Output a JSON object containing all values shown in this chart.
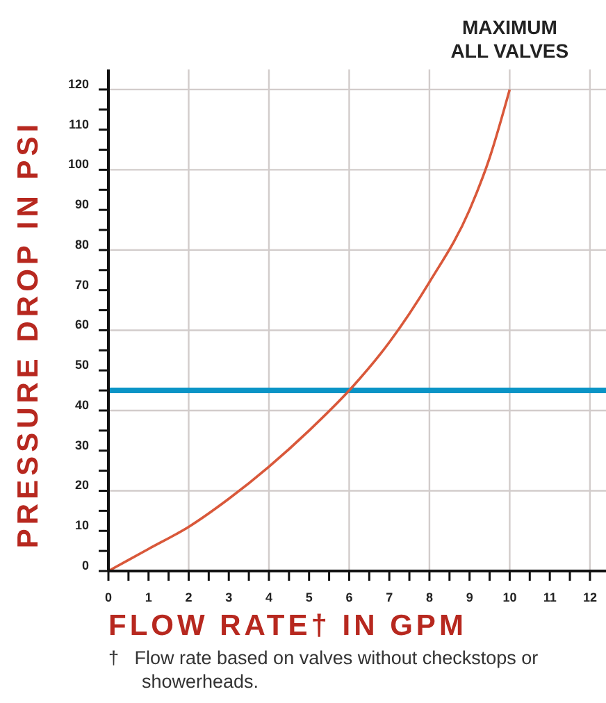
{
  "chart_data": {
    "type": "line",
    "xlabel": "FLOW RATE† IN GPM",
    "ylabel": "PRESSURE DROP IN PSI",
    "x": [
      0,
      1,
      2,
      3,
      4,
      5,
      6,
      7,
      8,
      9,
      9.5,
      10
    ],
    "series": [
      {
        "color": "#d9583a",
        "values": [
          0,
          5.5,
          11,
          18,
          26,
          35,
          45,
          57,
          72,
          90,
          103,
          120
        ]
      }
    ],
    "xlim": [
      0,
      12.4
    ],
    "ylim": [
      0,
      125
    ],
    "xticks": [
      0,
      {
        "value": 0.5,
        "label": null
      },
      1,
      {
        "value": 1.5,
        "label": null
      },
      2,
      {
        "value": 2.5,
        "label": null
      },
      3,
      {
        "value": 3.5,
        "label": null
      },
      4,
      {
        "value": 4.5,
        "label": null
      },
      5,
      {
        "value": 5.5,
        "label": null
      },
      6,
      {
        "value": 6.5,
        "label": null
      },
      7,
      {
        "value": 7.5,
        "label": null
      },
      8,
      {
        "value": 8.5,
        "label": null
      },
      9,
      {
        "value": 9.5,
        "label": null
      },
      10,
      {
        "value": 10.5,
        "label": null
      },
      11,
      {
        "value": 11.5,
        "label": null
      },
      12
    ],
    "yticks": [
      0,
      {
        "value": 5,
        "label": null
      },
      10,
      {
        "value": 15,
        "label": null
      },
      20,
      {
        "value": 25,
        "label": null
      },
      30,
      {
        "value": 35,
        "label": null
      },
      40,
      {
        "value": 45,
        "label": null
      },
      50,
      {
        "value": 55,
        "label": null
      },
      60,
      {
        "value": 65,
        "label": null
      },
      70,
      {
        "value": 75,
        "label": null
      },
      80,
      {
        "value": 85,
        "label": null
      },
      90,
      {
        "value": 95,
        "label": null
      },
      100,
      {
        "value": 105,
        "label": null
      },
      110,
      {
        "value": 115,
        "label": null
      },
      120
    ],
    "grid": true,
    "marker": "none",
    "line_style": "solid",
    "ref_lines": [
      {
        "axis": "y",
        "value": 45,
        "color": "#0a94c6"
      }
    ],
    "annotations": [
      {
        "text": "MAXIMUM\nALL VALVES",
        "x": 10,
        "y": 120
      },
      "†   Flow rate based on valves without checkstops or\nshowerheads."
    ]
  }
}
